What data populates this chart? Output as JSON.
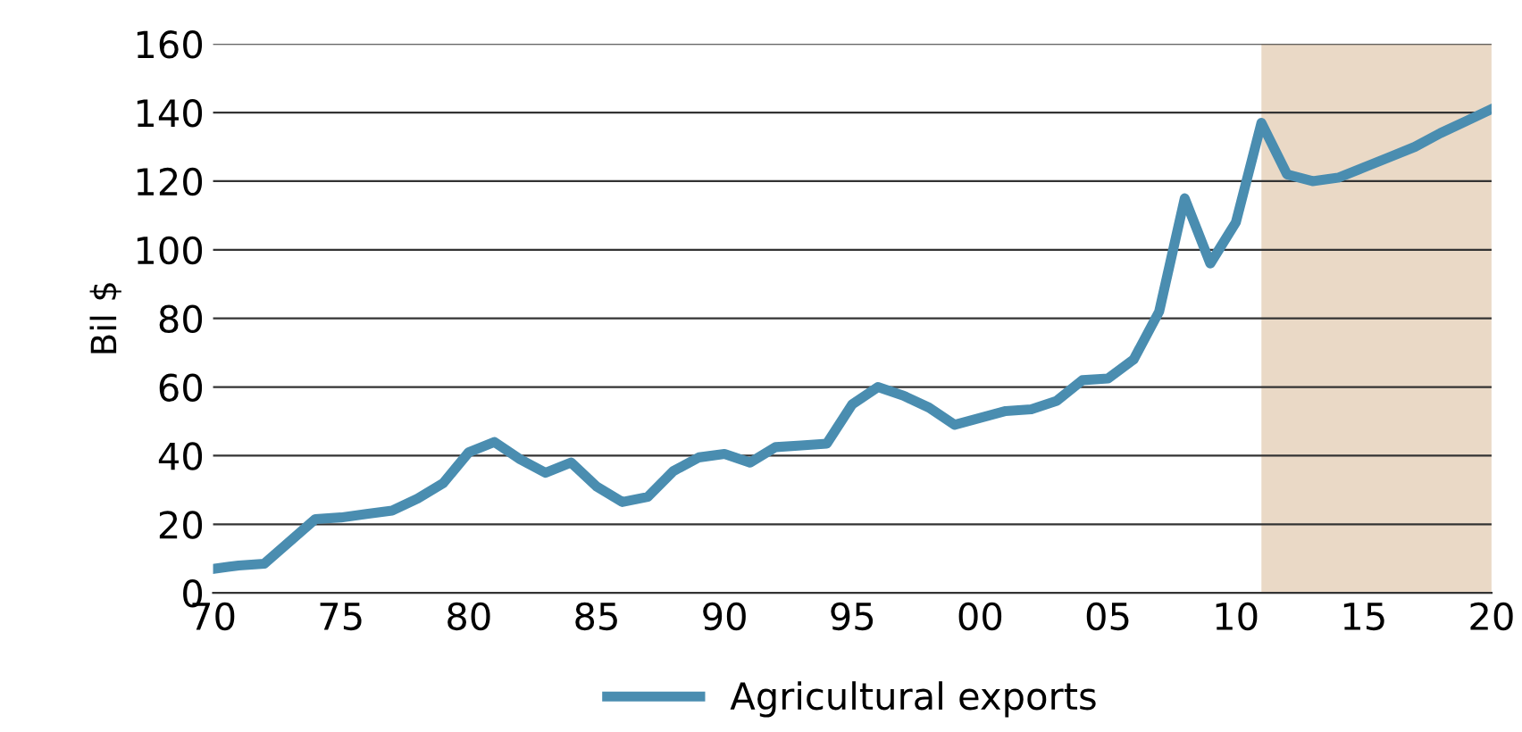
{
  "chart_data": {
    "type": "line",
    "ylabel": "Bil $",
    "x": [
      1970,
      1971,
      1972,
      1973,
      1974,
      1975,
      1976,
      1977,
      1978,
      1979,
      1980,
      1981,
      1982,
      1983,
      1984,
      1985,
      1986,
      1987,
      1988,
      1989,
      1990,
      1991,
      1992,
      1993,
      1994,
      1995,
      1996,
      1997,
      1998,
      1999,
      2000,
      2001,
      2002,
      2003,
      2004,
      2005,
      2006,
      2007,
      2008,
      2009,
      2010,
      2011,
      2012,
      2013,
      2014,
      2015,
      2016,
      2017,
      2018,
      2019,
      2020
    ],
    "series": [
      {
        "name": "Agricultural exports",
        "color": "#4a8db0",
        "values": [
          7,
          8,
          8.5,
          15,
          21.5,
          22,
          23,
          24,
          27.5,
          32,
          41,
          44,
          39,
          35,
          38,
          31,
          26.5,
          28,
          35.5,
          39.5,
          40.5,
          38,
          42.5,
          43,
          43.5,
          55,
          60,
          57.5,
          54,
          49,
          51,
          53,
          53.5,
          56,
          62,
          62.5,
          68,
          82,
          115,
          96,
          108,
          137,
          122,
          120,
          121,
          124,
          127,
          130,
          134,
          137.5,
          141
        ]
      }
    ],
    "xlim": [
      1970,
      2020
    ],
    "xticks": [
      {
        "value": 1970,
        "label": "70"
      },
      {
        "value": 1975,
        "label": "75"
      },
      {
        "value": 1980,
        "label": "80"
      },
      {
        "value": 1985,
        "label": "85"
      },
      {
        "value": 1990,
        "label": "90"
      },
      {
        "value": 1995,
        "label": "95"
      },
      {
        "value": 2000,
        "label": "00"
      },
      {
        "value": 2005,
        "label": "05"
      },
      {
        "value": 2010,
        "label": "10"
      },
      {
        "value": 2015,
        "label": "15"
      },
      {
        "value": 2020,
        "label": "20"
      }
    ],
    "ylim": [
      0,
      160
    ],
    "yticks": [
      0,
      20,
      40,
      60,
      80,
      100,
      120,
      140,
      160
    ],
    "bands": [
      {
        "axis": "x",
        "from": 2011,
        "to": 2020,
        "color": "#ead9c6"
      }
    ],
    "grid": "y",
    "legend": "bottom",
    "line_style": "solid",
    "marker": "none"
  }
}
